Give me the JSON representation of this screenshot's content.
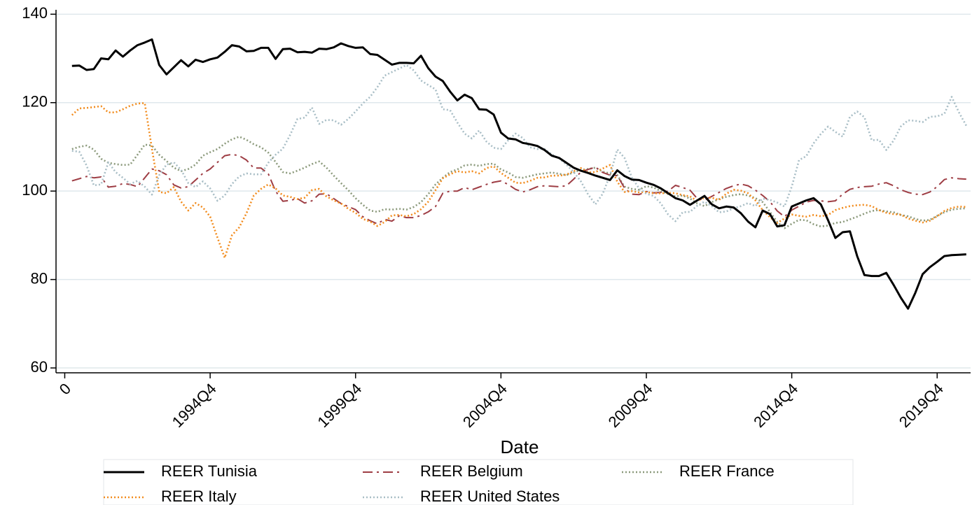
{
  "chart_data": {
    "type": "line",
    "x_label": "Date",
    "x": [
      120,
      121,
      122,
      123,
      124,
      125,
      126,
      127,
      128,
      129,
      130,
      131,
      132,
      133,
      134,
      135,
      136,
      137,
      138,
      139,
      140,
      141,
      142,
      143,
      144,
      145,
      146,
      147,
      148,
      149,
      150,
      151,
      152,
      153,
      154,
      155,
      156,
      157,
      158,
      159,
      160,
      161,
      162,
      163,
      164,
      165,
      166,
      167,
      168,
      169,
      170,
      171,
      172,
      173,
      174,
      175,
      176,
      177,
      178,
      179,
      180,
      181,
      182,
      183,
      184,
      185,
      186,
      187,
      188,
      189,
      190,
      191,
      192,
      193,
      194,
      195,
      196,
      197,
      198,
      199,
      200,
      201,
      202,
      203,
      204,
      205,
      206,
      207,
      208,
      209,
      210,
      211,
      212,
      213,
      214,
      215,
      216,
      217,
      218,
      219,
      220,
      221,
      222,
      223,
      224,
      225,
      226,
      227,
      228,
      229,
      230,
      231,
      232,
      233,
      234,
      235,
      236,
      237,
      238,
      239,
      240,
      241,
      242,
      243
    ],
    "xlim": [
      117.8,
      243.6
    ],
    "xticks": [
      {
        "value": 119,
        "label": "0"
      },
      {
        "value": 139,
        "label": "1994Q4"
      },
      {
        "value": 159,
        "label": "1999Q4"
      },
      {
        "value": 179,
        "label": "2004Q4"
      },
      {
        "value": 199,
        "label": "2009Q4"
      },
      {
        "value": 219,
        "label": "2014Q4"
      },
      {
        "value": 239,
        "label": "2019Q4"
      }
    ],
    "ylim": [
      58.9,
      141
    ],
    "yticks": [
      60,
      80,
      100,
      120,
      140
    ],
    "grid": true,
    "legend": "bottom",
    "series": [
      {
        "name": "REER Tunisia",
        "color": "#000000",
        "style": "solid",
        "values": [
          128.3,
          128.4,
          127.4,
          127.6,
          130.0,
          129.8,
          131.8,
          130.4,
          131.8,
          133.0,
          133.6,
          134.3,
          128.5,
          126.4,
          128.0,
          129.6,
          128.2,
          129.7,
          129.2,
          129.8,
          130.2,
          131.5,
          133.0,
          132.7,
          131.6,
          131.7,
          132.4,
          132.4,
          129.9,
          132.1,
          132.2,
          131.4,
          131.5,
          131.3,
          132.2,
          132.1,
          132.5,
          133.4,
          132.8,
          132.4,
          132.5,
          131.0,
          130.8,
          129.7,
          128.6,
          129.0,
          129.0,
          128.9,
          130.6,
          127.8,
          125.9,
          124.9,
          122.5,
          120.5,
          121.8,
          121.0,
          118.5,
          118.4,
          117.3,
          113.2,
          111.9,
          111.7,
          110.9,
          110.6,
          110.2,
          109.3,
          108.0,
          107.5,
          106.4,
          105.3,
          104.6,
          104.1,
          103.5,
          103.0,
          102.5,
          104.7,
          103.4,
          102.6,
          102.5,
          101.9,
          101.4,
          100.6,
          99.5,
          98.4,
          97.9,
          96.9,
          97.9,
          98.9,
          97.0,
          96.1,
          96.5,
          96.3,
          95.0,
          93.1,
          91.8,
          95.6,
          94.8,
          92.0,
          92.3,
          96.5,
          97.2,
          97.9,
          98.4,
          97.0,
          93.4,
          89.4,
          90.7,
          90.9,
          85.3,
          81.0,
          80.8,
          80.8,
          81.5,
          78.8,
          75.9,
          73.4,
          77.0,
          81.2,
          82.8,
          84.0,
          85.3,
          85.5,
          85.6,
          85.7
        ]
      },
      {
        "name": "REER Belgium",
        "color": "#9e3d44",
        "style": "dashdot",
        "values": [
          102.3,
          102.8,
          103.3,
          103.0,
          103.2,
          100.9,
          101.1,
          101.7,
          101.5,
          101.0,
          103.0,
          105.0,
          104.6,
          103.7,
          101.4,
          100.7,
          101.0,
          102.5,
          104.0,
          105.0,
          106.5,
          108.0,
          108.3,
          108.0,
          107.0,
          105.2,
          105.2,
          103.9,
          100.0,
          97.7,
          97.9,
          98.3,
          97.3,
          97.8,
          99.3,
          99.4,
          98.3,
          97.2,
          96.5,
          95.8,
          94.2,
          93.3,
          92.6,
          93.6,
          93.2,
          94.4,
          94.0,
          94.0,
          94.5,
          95.3,
          96.5,
          99.5,
          100.0,
          100.0,
          100.8,
          100.3,
          100.9,
          101.5,
          102.0,
          102.3,
          101.5,
          100.4,
          99.8,
          100.3,
          101.0,
          101.2,
          101.1,
          101.0,
          101.2,
          102.7,
          104.3,
          104.9,
          105.4,
          104.2,
          103.6,
          103.5,
          100.7,
          99.3,
          99.2,
          99.9,
          99.6,
          99.7,
          100.0,
          101.3,
          100.8,
          100.2,
          98.3,
          98.0,
          98.8,
          99.7,
          100.6,
          101.2,
          101.6,
          101.2,
          100.2,
          99.0,
          97.6,
          95.5,
          94.2,
          95.7,
          96.6,
          97.5,
          97.9,
          97.8,
          97.6,
          97.8,
          99.3,
          100.4,
          100.8,
          101.0,
          101.1,
          101.6,
          101.9,
          101.2,
          100.3,
          99.7,
          99.3,
          99.2,
          99.8,
          101.0,
          102.6,
          103.0,
          102.8,
          102.7
        ]
      },
      {
        "name": "REER France",
        "color": "#8c9a7c",
        "style": "dot",
        "values": [
          109.5,
          110.0,
          110.3,
          109.4,
          107.3,
          106.4,
          106.1,
          105.9,
          106.0,
          108.2,
          110.5,
          110.3,
          108.2,
          106.8,
          105.3,
          104.5,
          105.0,
          106.0,
          108.0,
          108.8,
          109.5,
          110.7,
          111.7,
          112.3,
          111.6,
          110.6,
          109.9,
          108.7,
          106.6,
          104.3,
          104.0,
          104.6,
          105.3,
          106.1,
          106.7,
          105.3,
          103.5,
          101.8,
          100.2,
          98.4,
          96.9,
          95.6,
          95.3,
          95.9,
          95.8,
          96.0,
          95.8,
          96.4,
          97.5,
          99.3,
          101.5,
          103.0,
          104.3,
          104.9,
          105.8,
          106.0,
          105.7,
          106.1,
          106.2,
          104.9,
          104.2,
          103.2,
          103.0,
          103.4,
          103.8,
          104.0,
          104.2,
          103.9,
          103.6,
          104.2,
          104.8,
          105.0,
          105.3,
          104.4,
          104.0,
          103.6,
          101.0,
          100.5,
          100.3,
          101.1,
          100.8,
          100.0,
          99.3,
          98.8,
          99.0,
          98.3,
          97.2,
          96.6,
          97.5,
          98.2,
          98.7,
          99.1,
          99.3,
          99.0,
          98.4,
          97.5,
          95.3,
          93.0,
          91.6,
          92.6,
          93.5,
          93.4,
          92.5,
          92.0,
          92.2,
          92.8,
          93.0,
          93.6,
          94.2,
          94.9,
          95.5,
          95.7,
          95.4,
          95.2,
          94.6,
          94.3,
          93.7,
          93.3,
          93.5,
          94.4,
          95.2,
          95.8,
          96.0,
          96.1
        ]
      },
      {
        "name": "REER Italy",
        "color": "#f28c1e",
        "style": "dot",
        "values": [
          117.2,
          118.7,
          118.8,
          119.0,
          119.2,
          117.8,
          117.8,
          118.5,
          119.3,
          119.8,
          119.9,
          109.5,
          99.8,
          99.5,
          100.9,
          97.6,
          95.6,
          97.3,
          96.3,
          94.2,
          89.5,
          84.9,
          90.0,
          91.8,
          95.0,
          99.0,
          100.5,
          101.5,
          100.6,
          99.0,
          98.7,
          98.2,
          98.5,
          100.2,
          100.5,
          98.8,
          97.9,
          97.2,
          96.0,
          95.1,
          93.7,
          93.1,
          92.1,
          93.0,
          94.5,
          94.6,
          94.3,
          94.8,
          95.9,
          97.6,
          100.2,
          102.9,
          103.8,
          104.5,
          104.2,
          104.5,
          104.0,
          105.2,
          105.6,
          104.1,
          103.0,
          101.9,
          101.8,
          102.3,
          103.0,
          103.1,
          103.5,
          103.5,
          103.7,
          104.5,
          105.2,
          104.2,
          104.3,
          105.1,
          105.9,
          102.1,
          99.8,
          100.0,
          99.7,
          99.8,
          99.5,
          99.5,
          99.6,
          99.5,
          99.1,
          98.8,
          97.8,
          98.5,
          98.5,
          98.0,
          99.4,
          100.3,
          100.1,
          99.5,
          97.9,
          95.7,
          94.1,
          92.8,
          93.8,
          94.7,
          94.4,
          94.2,
          94.6,
          94.3,
          94.6,
          95.7,
          96.2,
          96.6,
          96.8,
          96.9,
          96.6,
          95.7,
          95.1,
          94.8,
          94.7,
          93.8,
          93.3,
          92.9,
          93.3,
          94.3,
          95.5,
          96.2,
          96.5,
          96.4
        ]
      },
      {
        "name": "REER United States",
        "color": "#a9bec6",
        "style": "dot",
        "values": [
          109.1,
          108.9,
          105.8,
          101.3,
          101.5,
          106.5,
          104.3,
          103.0,
          101.6,
          102.3,
          101.0,
          99.2,
          103.6,
          106.0,
          106.5,
          104.8,
          101.8,
          100.9,
          102.2,
          100.6,
          97.8,
          99.0,
          101.6,
          103.3,
          104.0,
          103.8,
          103.8,
          106.4,
          108.2,
          109.6,
          112.7,
          116.3,
          116.6,
          118.9,
          115.2,
          116.1,
          116.0,
          115.0,
          116.3,
          118.0,
          119.8,
          121.3,
          123.5,
          126.1,
          126.9,
          127.7,
          128.5,
          127.3,
          125.0,
          124.0,
          123.0,
          118.5,
          118.3,
          115.5,
          113.0,
          111.9,
          113.7,
          111.2,
          109.8,
          109.5,
          111.5,
          113.0,
          112.0,
          109.9,
          109.5,
          109.5,
          108.3,
          107.4,
          106.0,
          104.3,
          102.2,
          99.2,
          97.0,
          99.4,
          103.6,
          109.4,
          107.5,
          103.1,
          100.6,
          99.4,
          98.9,
          97.2,
          94.7,
          93.2,
          95.2,
          95.3,
          96.7,
          97.6,
          96.6,
          95.2,
          95.4,
          96.1,
          96.6,
          97.3,
          96.6,
          98.3,
          98.0,
          97.4,
          96.5,
          101.0,
          107.0,
          107.9,
          110.8,
          112.9,
          114.6,
          113.4,
          112.3,
          116.8,
          118.0,
          116.7,
          111.5,
          111.6,
          109.3,
          111.4,
          114.6,
          116.0,
          115.9,
          115.6,
          116.8,
          116.9,
          117.5,
          121.3,
          117.8,
          114.8
        ]
      }
    ]
  }
}
